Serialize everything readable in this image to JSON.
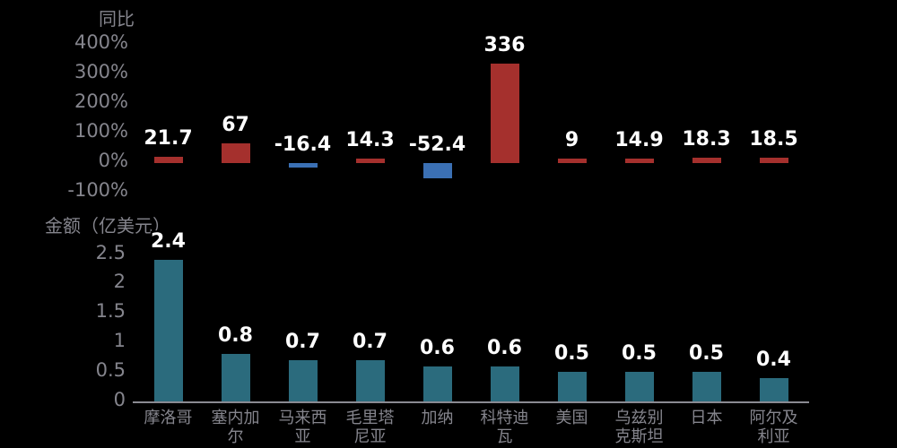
{
  "page": {
    "background": "#000000",
    "text_gray": "#85858D",
    "axis_line_color": "#8A8A92",
    "value_label_color": "#FFFFFF",
    "value_label_outline": "#000000"
  },
  "chart_data": [
    {
      "type": "bar",
      "title": "同比",
      "unit": "%",
      "categories": [
        "摩洛哥",
        "塞内加尔",
        "马来西亚",
        "毛里塔尼亚",
        "加纳",
        "科特迪瓦",
        "美国",
        "乌兹别克斯坦",
        "日本",
        "阿尔及利亚"
      ],
      "values": [
        21.7,
        67,
        -16.4,
        14.3,
        -52.4,
        336,
        9,
        14.9,
        18.3,
        18.5
      ],
      "value_labels": [
        "21.7",
        "67",
        "-16.4",
        "14.3",
        "-52.4",
        "336",
        "9",
        "14.9",
        "18.3",
        "18.5"
      ],
      "ylim": [
        -100,
        400
      ],
      "yticks": [
        400,
        300,
        200,
        100,
        0,
        -100
      ],
      "ytick_labels": [
        "400%",
        "300%",
        "200%",
        "100%",
        "0%",
        "-100%"
      ],
      "positive_color": "#A5302D",
      "negative_color": "#3B70B4",
      "grid": false,
      "legend": "none",
      "xtick_labels_shown": false
    },
    {
      "type": "bar",
      "title": "金额（亿美元）",
      "unit": "亿美元",
      "categories": [
        "摩洛哥",
        "塞内加尔",
        "马来西亚",
        "毛里塔尼亚",
        "加纳",
        "科特迪瓦",
        "美国",
        "乌兹别克斯坦",
        "日本",
        "阿尔及利亚"
      ],
      "values": [
        2.4,
        0.8,
        0.7,
        0.7,
        0.6,
        0.6,
        0.5,
        0.5,
        0.5,
        0.4
      ],
      "value_labels": [
        "2.4",
        "0.8",
        "0.7",
        "0.7",
        "0.6",
        "0.6",
        "0.5",
        "0.5",
        "0.5",
        "0.4"
      ],
      "ylim": [
        0,
        2.5
      ],
      "yticks": [
        2.5,
        2,
        1.5,
        1,
        0.5,
        0
      ],
      "ytick_labels": [
        "2.5",
        "2",
        "1.5",
        "1",
        "0.5",
        "0"
      ],
      "bar_color": "#2B6B7D",
      "grid": false,
      "legend": "none",
      "xtick_labels_shown": true
    }
  ]
}
